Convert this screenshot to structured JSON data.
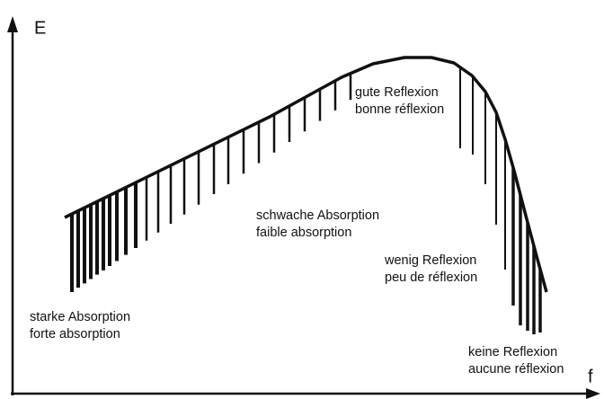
{
  "axes": {
    "y_label": "E",
    "x_label": "f"
  },
  "annotations": [
    {
      "lines": [
        "gute Reflexion",
        "bonne réflexion"
      ]
    },
    {
      "lines": [
        "schwache Absorption",
        "faible absorption"
      ]
    },
    {
      "lines": [
        "wenig Reflexion",
        "peu de réflexion"
      ]
    },
    {
      "lines": [
        "starke Absorption",
        "forte absorption"
      ]
    },
    {
      "lines": [
        "keine Reflexion",
        "aucune réflexion"
      ]
    }
  ]
}
